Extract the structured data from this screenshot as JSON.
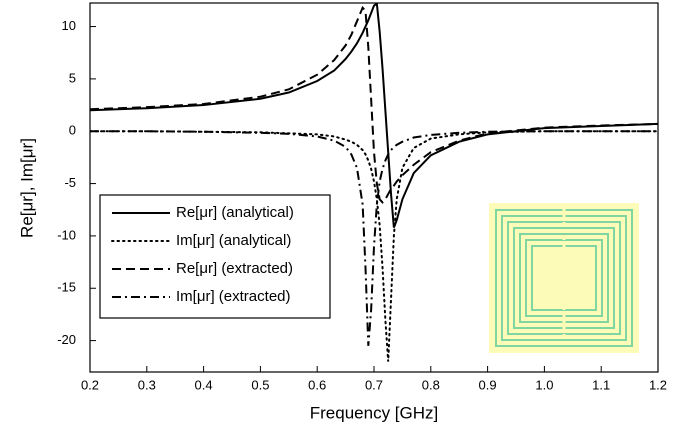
{
  "chart_data": {
    "type": "line",
    "x_label": "Frequency [GHz]",
    "y_label": "Re[μr], Im[μr]",
    "x": [
      0.2,
      0.3,
      0.4,
      0.5,
      0.55,
      0.6,
      0.63,
      0.65,
      0.66,
      0.67,
      0.68,
      0.685,
      0.69,
      0.695,
      0.7,
      0.705,
      0.71,
      0.715,
      0.72,
      0.725,
      0.73,
      0.735,
      0.74,
      0.75,
      0.77,
      0.8,
      0.85,
      0.9,
      1.0,
      1.1,
      1.2
    ],
    "series": [
      {
        "name": "Re[μr] (analytical)",
        "color": "#000000",
        "style": "solid",
        "values": [
          2.0,
          2.2,
          2.5,
          3.1,
          3.7,
          4.8,
          5.8,
          6.9,
          7.6,
          8.4,
          9.4,
          10.0,
          10.6,
          11.3,
          12.0,
          12.2,
          9.5,
          6,
          2,
          -2,
          -6,
          -9.2,
          -8.5,
          -6.5,
          -4.0,
          -2.3,
          -1.0,
          -0.3,
          0.3,
          0.5,
          0.7
        ]
      },
      {
        "name": "Im[μr] (analytical)",
        "color": "#000000",
        "style": "dotted",
        "values": [
          0,
          0,
          -0.05,
          -0.1,
          -0.2,
          -0.3,
          -0.5,
          -0.8,
          -1,
          -1.3,
          -1.8,
          -2.2,
          -2.8,
          -3.6,
          -4.8,
          -6.5,
          -9,
          -13,
          -18,
          -22,
          -16,
          -10,
          -6.5,
          -3.5,
          -1.6,
          -0.7,
          -0.3,
          -0.1,
          0,
          0,
          0
        ]
      },
      {
        "name": "Re[μr] (extracted)",
        "color": "#000000",
        "style": "dashed",
        "values": [
          2.1,
          2.3,
          2.6,
          3.3,
          4.0,
          5.4,
          6.8,
          8.2,
          9.2,
          10.5,
          11.8,
          11.5,
          8,
          3,
          -2,
          -5,
          -6.5,
          -6.8,
          -6.5,
          -6,
          -5.5,
          -5.2,
          -4.8,
          -4.2,
          -3.2,
          -2.0,
          -0.9,
          -0.2,
          0.35,
          0.55,
          0.7
        ]
      },
      {
        "name": "Im[μr] (extracted)",
        "color": "#000000",
        "style": "dashdot",
        "values": [
          0,
          0,
          -0.05,
          -0.15,
          -0.25,
          -0.5,
          -0.9,
          -1.5,
          -2.2,
          -3.5,
          -7,
          -13,
          -20.5,
          -17,
          -11,
          -7,
          -4.8,
          -3.6,
          -2.8,
          -2.2,
          -1.8,
          -1.5,
          -1.3,
          -1.0,
          -0.6,
          -0.35,
          -0.15,
          -0.05,
          0,
          0,
          0
        ]
      }
    ],
    "xlim": [
      0.2,
      1.2
    ],
    "xticks": [
      0.2,
      0.3,
      0.4,
      0.5,
      0.6,
      0.7,
      0.8,
      0.9,
      {
        "value": 1,
        "label": "1.0"
      },
      1.1,
      1.2
    ],
    "ylim": [
      -23,
      12.25
    ],
    "yticks": [
      -20,
      -15,
      -10,
      -5,
      0,
      5,
      10
    ],
    "legend": "lower left"
  }
}
